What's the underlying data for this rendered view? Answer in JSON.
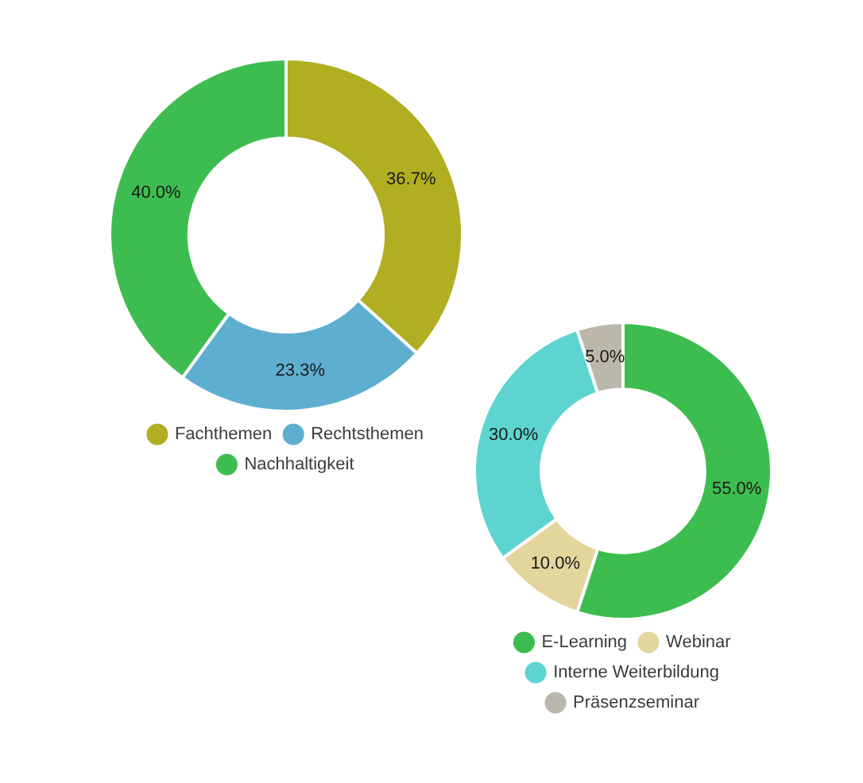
{
  "chart_data": [
    {
      "type": "donut",
      "categories": [
        "Fachthemen",
        "Rechtsthemen",
        "Nachhaltigkeit"
      ],
      "values": [
        36.7,
        23.3,
        40.0
      ],
      "colors": [
        "#b1ae22",
        "#5eaecf",
        "#3dbd50"
      ],
      "value_labels": [
        "36.7%",
        "23.3%",
        "40.0%"
      ],
      "legend": "bottom"
    },
    {
      "type": "donut",
      "categories": [
        "E-Learning",
        "Webinar",
        "Interne Weiterbildung",
        "Präsenzseminar"
      ],
      "values": [
        55.0,
        10.0,
        30.0,
        5.0
      ],
      "colors": [
        "#3dbd50",
        "#e3d69c",
        "#5dd4d0",
        "#bbb8ab"
      ],
      "value_labels": [
        "55.0%",
        "10.0%",
        "30.0%",
        "5.0%"
      ],
      "legend": "bottom"
    }
  ]
}
